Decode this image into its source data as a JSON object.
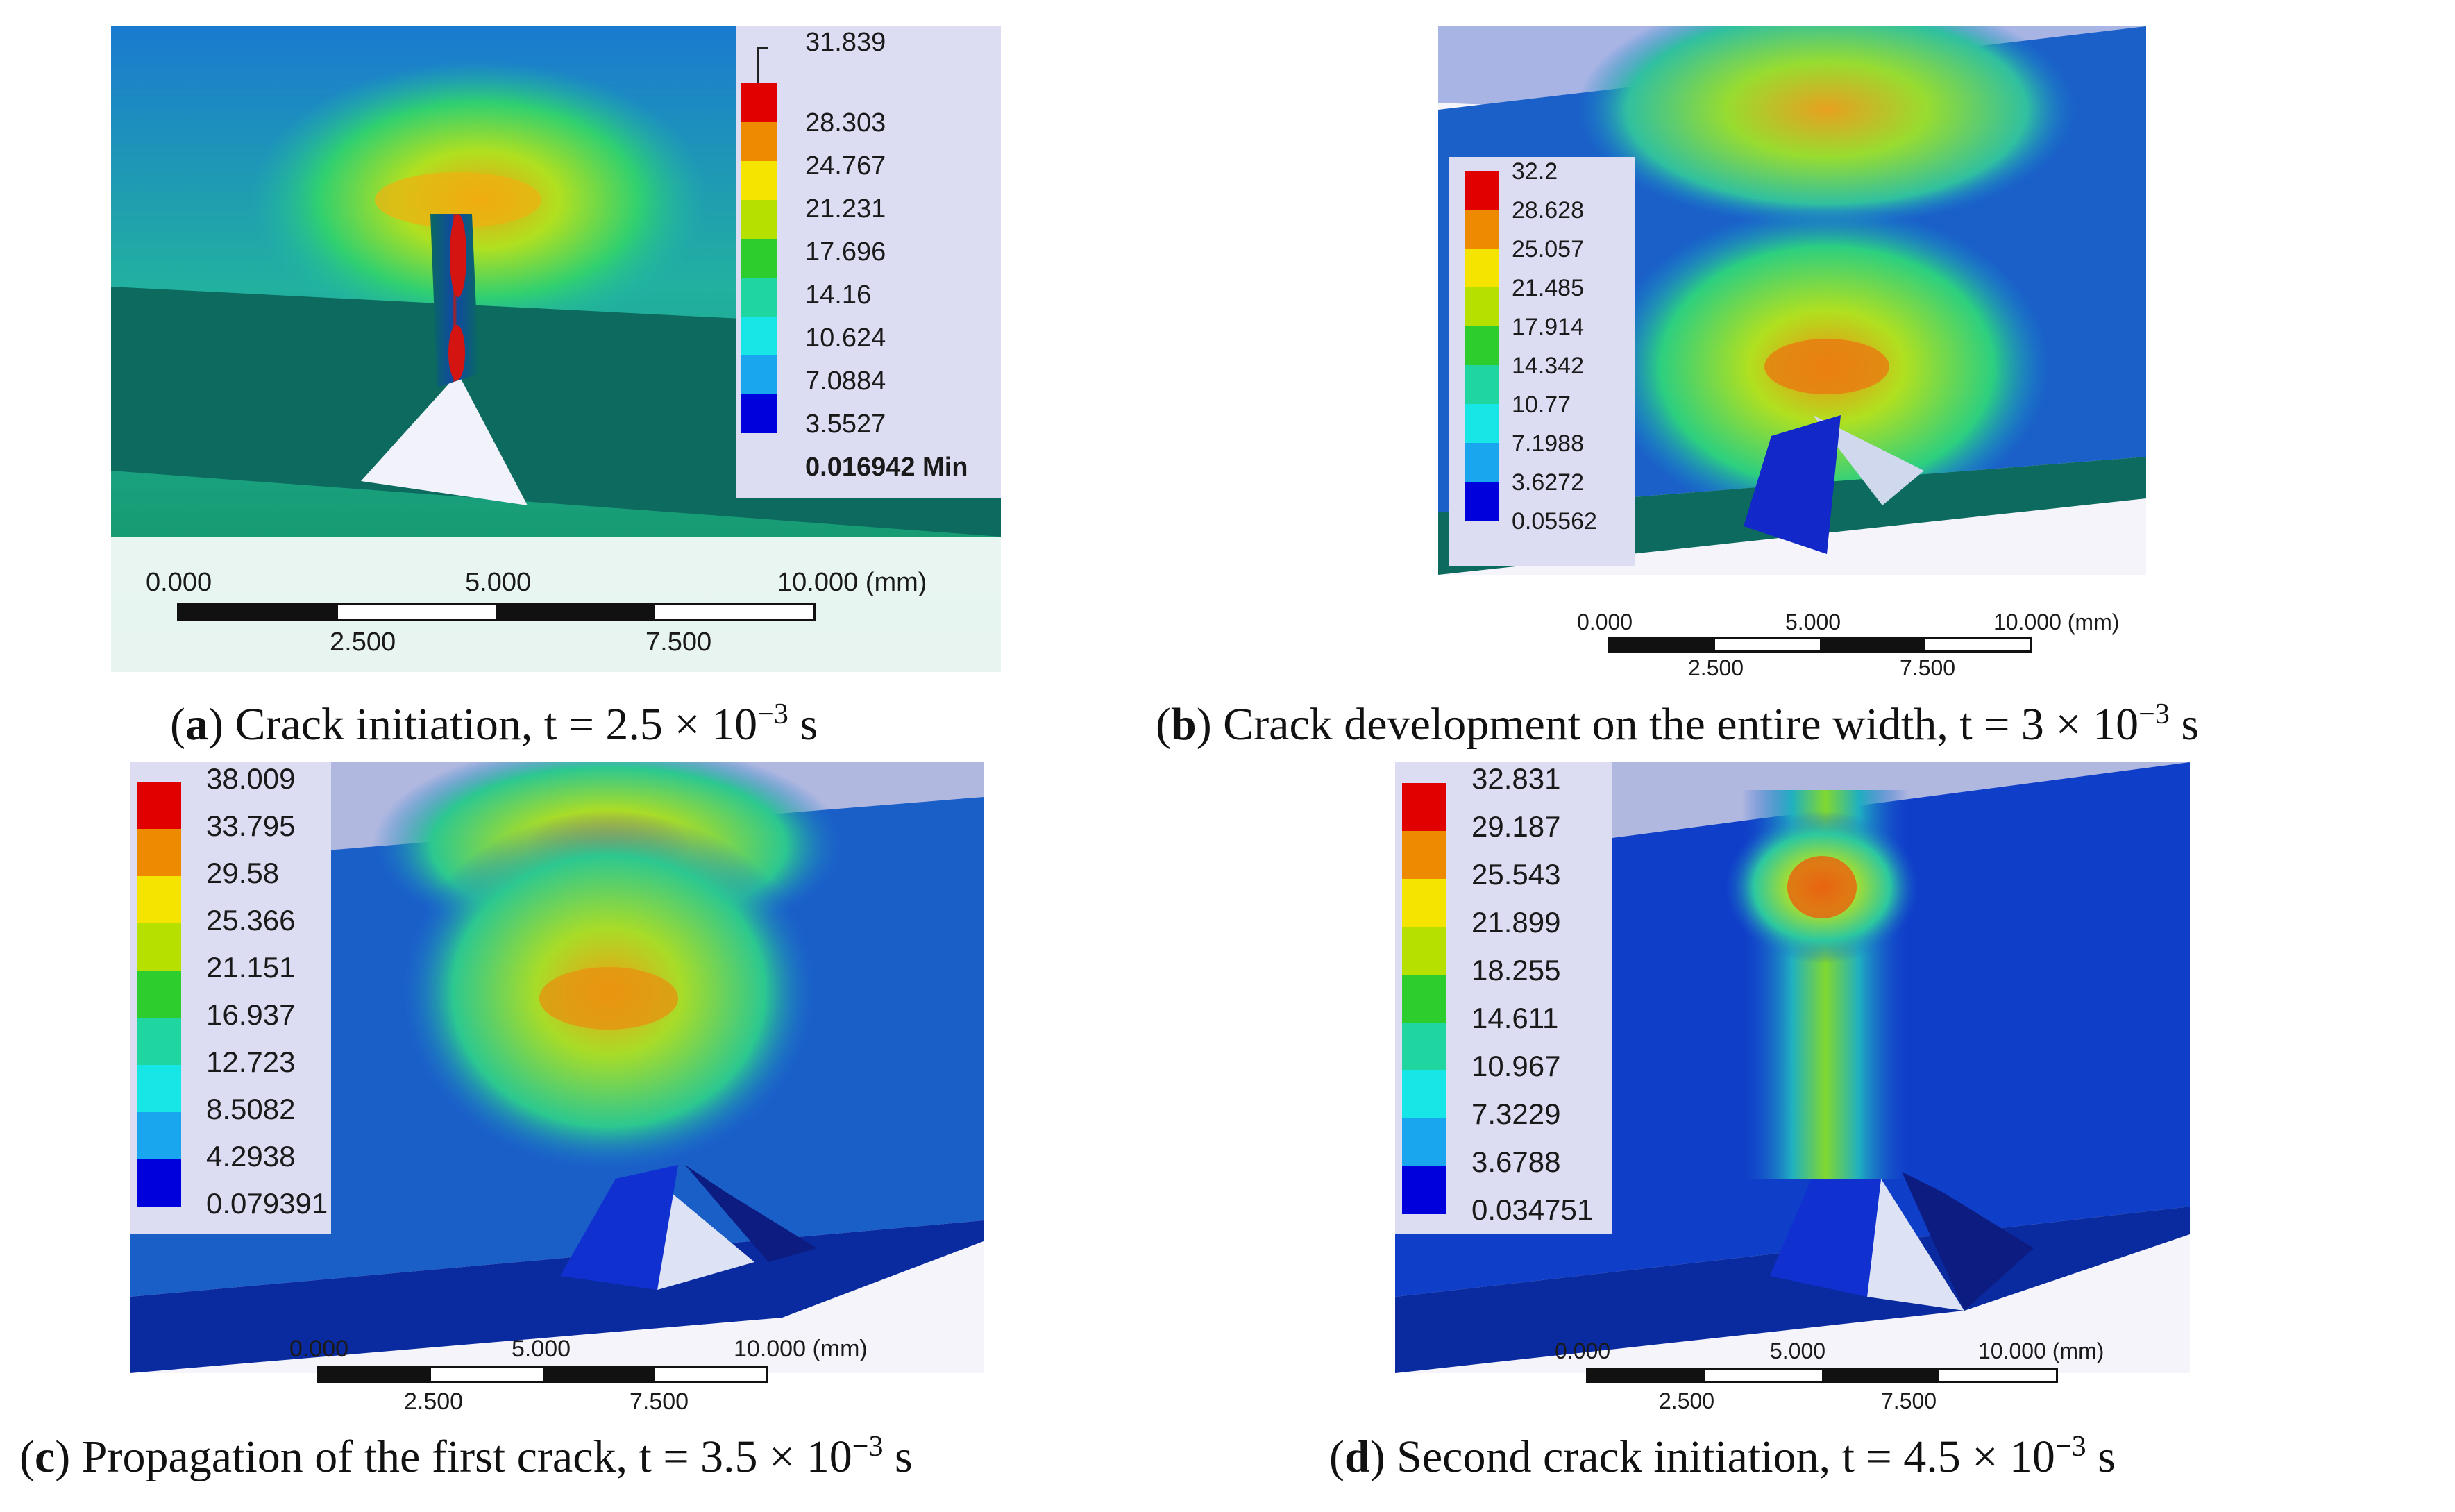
{
  "legend_colors": [
    "#e00000",
    "#ee8a00",
    "#f4e400",
    "#b5e000",
    "#2ccd2c",
    "#20d6a0",
    "#16e6e6",
    "#1aa6ee",
    "#1050ee",
    "#0000dd"
  ],
  "panels": {
    "a": {
      "legend": [
        "31.839",
        "28.303",
        "24.767",
        "21.231",
        "17.696",
        "14.16",
        "10.624",
        "7.0884",
        "3.5527",
        "0.016942 Min"
      ],
      "scale": {
        "top": [
          "0.000",
          "5.000",
          "10.000 (mm)"
        ],
        "bottom": [
          "2.500",
          "7.500"
        ]
      },
      "caption": {
        "letter": "a",
        "text": ") Crack initiation, t = 2.5 × 10",
        "exp": "−3",
        "unit": " s"
      }
    },
    "b": {
      "legend": [
        "32.2",
        "28.628",
        "25.057",
        "21.485",
        "17.914",
        "14.342",
        "10.77",
        "7.1988",
        "3.6272",
        "0.05562"
      ],
      "scale": {
        "top": [
          "0.000",
          "5.000",
          "10.000 (mm)"
        ],
        "bottom": [
          "2.500",
          "7.500"
        ]
      },
      "caption": {
        "letter": "b",
        "text": ") Crack development on the entire width, t = 3 × 10",
        "exp": "−3",
        "unit": " s"
      }
    },
    "c": {
      "legend": [
        "38.009",
        "33.795",
        "29.58",
        "25.366",
        "21.151",
        "16.937",
        "12.723",
        "8.5082",
        "4.2938",
        "0.079391"
      ],
      "scale": {
        "top": [
          "0.000",
          "5.000",
          "10.000 (mm)"
        ],
        "bottom": [
          "2.500",
          "7.500"
        ]
      },
      "caption": {
        "letter": "c",
        "text": ") Propagation of the first crack, t = 3.5 × 10",
        "exp": "−3",
        "unit": " s"
      }
    },
    "d": {
      "legend": [
        "32.831",
        "29.187",
        "25.543",
        "21.899",
        "18.255",
        "14.611",
        "10.967",
        "7.3229",
        "3.6788",
        "0.034751"
      ],
      "scale": {
        "top": [
          "0.000",
          "5.000",
          "10.000 (mm)"
        ],
        "bottom": [
          "2.500",
          "7.500"
        ]
      },
      "caption": {
        "letter": "d",
        "text": ") Second crack initiation, t = 4.5 × 10",
        "exp": "−3",
        "unit": " s"
      }
    }
  }
}
